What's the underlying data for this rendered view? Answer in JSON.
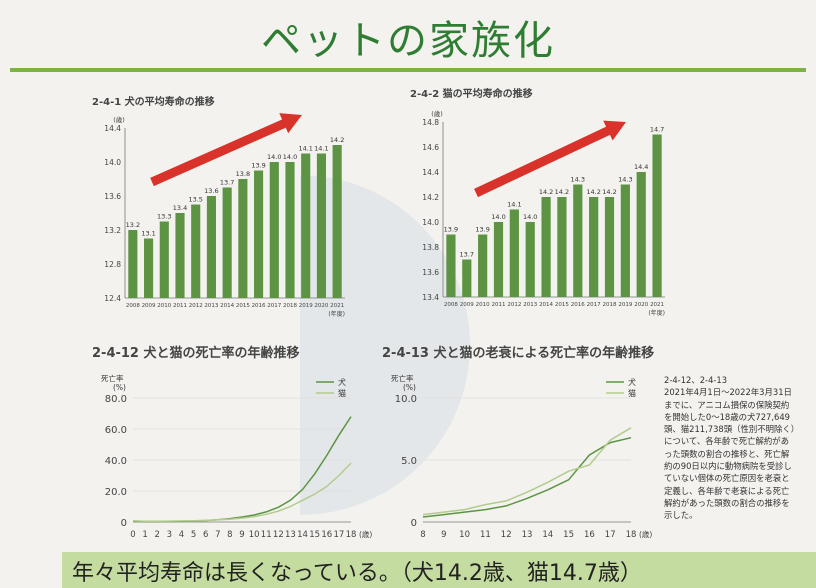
{
  "page": {
    "title": "ペットの家族化",
    "footer": "年々平均寿命は長くなっている。（犬14.2歳、猫14.7歳）"
  },
  "colors": {
    "bar": "#5d9444",
    "dog_line": "#5d9444",
    "cat_line": "#b2cc8e",
    "arrow": "#d9322a",
    "accent": "#7cb342"
  },
  "charts": {
    "dog_life": {
      "title": "2-4-1 犬の平均寿命の推移"
    },
    "cat_life": {
      "title": "2-4-2 猫の平均寿命の推移"
    },
    "mortality": {
      "title": "2-4-12 犬と猫の死亡率の年齢推移"
    },
    "senility": {
      "title": "2-4-13 犬と猫の老衰による死亡率の年齢推移"
    }
  },
  "chart_data": [
    {
      "type": "bar",
      "title": "2-4-1 犬の平均寿命の推移",
      "ylabel": "(歳)",
      "xlabel": "(年度)",
      "ylim": [
        12.4,
        14.4
      ],
      "yticks": [
        12.4,
        12.8,
        13.2,
        13.6,
        14.0,
        14.4
      ],
      "categories": [
        "2008",
        "2009",
        "2010",
        "2011",
        "2012",
        "2013",
        "2014",
        "2015",
        "2016",
        "2017",
        "2018",
        "2019",
        "2020",
        "2021"
      ],
      "values": [
        13.2,
        13.1,
        13.3,
        13.4,
        13.5,
        13.6,
        13.7,
        13.8,
        13.9,
        14.0,
        14.0,
        14.1,
        14.1,
        14.2
      ]
    },
    {
      "type": "bar",
      "title": "2-4-2 猫の平均寿命の推移",
      "ylabel": "(歳)",
      "xlabel": "(年度)",
      "ylim": [
        13.4,
        14.8
      ],
      "yticks": [
        13.4,
        13.6,
        13.8,
        14.0,
        14.2,
        14.4,
        14.6,
        14.8
      ],
      "categories": [
        "2008",
        "2009",
        "2010",
        "2011",
        "2012",
        "2013",
        "2014",
        "2015",
        "2016",
        "2017",
        "2018",
        "2019",
        "2020",
        "2021"
      ],
      "values": [
        13.9,
        13.7,
        13.9,
        14.0,
        14.1,
        14.0,
        14.2,
        14.2,
        14.3,
        14.2,
        14.2,
        14.3,
        14.4,
        14.7
      ]
    },
    {
      "type": "line",
      "title": "2-4-12 犬と猫の死亡率の年齢推移",
      "ylabel": "死亡率 (%)",
      "xlabel": "(歳)",
      "ylim": [
        0,
        80
      ],
      "yticks": [
        "0",
        "20.0",
        "40.0",
        "60.0",
        "80.0"
      ],
      "x": [
        0,
        1,
        2,
        3,
        4,
        5,
        6,
        7,
        8,
        9,
        10,
        11,
        12,
        13,
        14,
        15,
        16,
        17,
        18
      ],
      "series": [
        {
          "name": "犬",
          "values": [
            0.5,
            0.3,
            0.3,
            0.4,
            0.5,
            0.7,
            1.0,
            1.5,
            2.2,
            3.2,
            4.5,
            6.5,
            9.5,
            14,
            21,
            31,
            43,
            56,
            68
          ]
        },
        {
          "name": "猫",
          "values": [
            0.8,
            0.5,
            0.5,
            0.6,
            0.7,
            0.8,
            1.0,
            1.4,
            1.8,
            2.5,
            3.5,
            5,
            7,
            10,
            14,
            18,
            23,
            30,
            38
          ]
        }
      ]
    },
    {
      "type": "line",
      "title": "2-4-13 犬と猫の老衰による死亡率の年齢推移",
      "ylabel": "死亡率 (%)",
      "xlabel": "(歳)",
      "ylim": [
        0,
        10
      ],
      "yticks": [
        "0",
        "5.0",
        "10.0"
      ],
      "x": [
        8,
        9,
        10,
        11,
        12,
        13,
        14,
        15,
        16,
        17,
        18
      ],
      "series": [
        {
          "name": "犬",
          "values": [
            0.4,
            0.6,
            0.8,
            1.0,
            1.3,
            1.9,
            2.6,
            3.4,
            5.4,
            6.4,
            6.8
          ]
        },
        {
          "name": "猫",
          "values": [
            0.6,
            0.8,
            1.0,
            1.4,
            1.7,
            2.4,
            3.2,
            4.1,
            4.6,
            6.6,
            7.6
          ]
        }
      ]
    }
  ],
  "note": {
    "refs": "2-4-12、2-4-13",
    "text": "2021年4月1日〜2022年3月31日までに、アニコム損保の保険契約を開始した0〜18歳の犬727,649頭、猫211,738頭（性別不明除く）について、各年齢で死亡解約があった頭数の割合の推移と、死亡解約の90日以内に動物病院を受診していない個体の死亡原因を老衰と定義し、各年齢で老衰による死亡解約があった頭数の割合の推移を示した。"
  }
}
